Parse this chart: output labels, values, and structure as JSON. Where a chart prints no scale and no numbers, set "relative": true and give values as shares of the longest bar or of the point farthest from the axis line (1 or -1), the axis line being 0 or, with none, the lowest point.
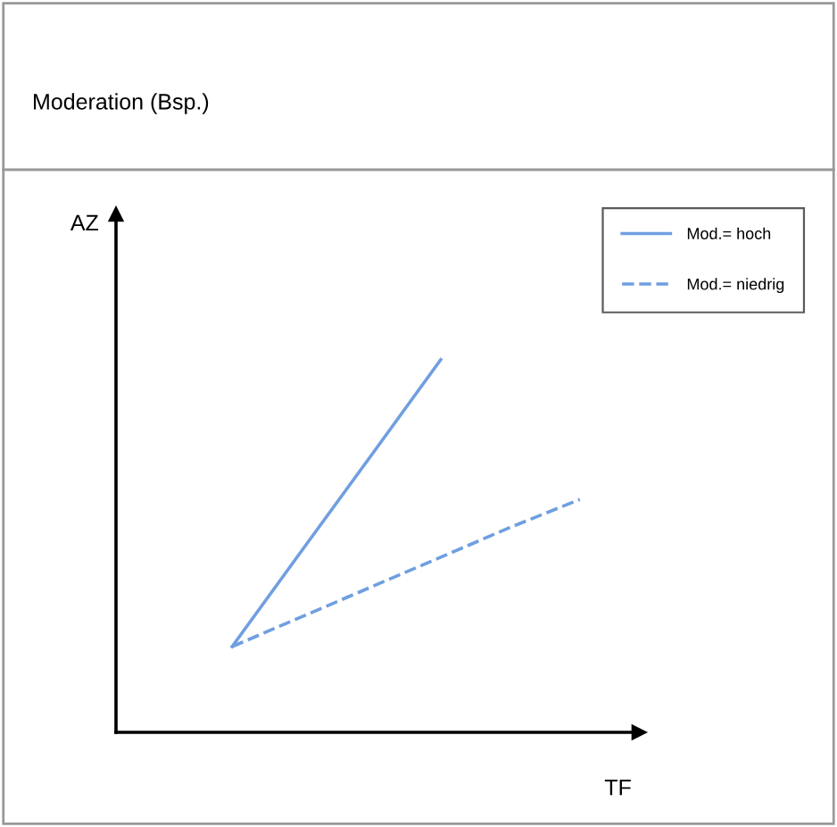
{
  "chart_data": {
    "type": "line",
    "title": "Moderation (Bsp.)",
    "xlabel": "TF",
    "annotations": [
      "AZ"
    ],
    "relative": true,
    "legend": "top right",
    "marker": "none",
    "categories": [
      null,
      null,
      null,
      null,
      null,
      null
    ],
    "series": [
      {
        "name": "Mod.= hoch",
        "color": "#6f9fe0",
        "values": [
          0.23,
          0.487,
          0.743,
          1,
          null,
          null
        ],
        "line_style": "solid"
      },
      {
        "name": "Mod.= niedrig",
        "color": "#6f9fe0",
        "values": [
          0.23,
          0.31,
          0.39,
          0.47,
          0.55,
          0.625
        ],
        "line_style": "dashed"
      }
    ]
  }
}
